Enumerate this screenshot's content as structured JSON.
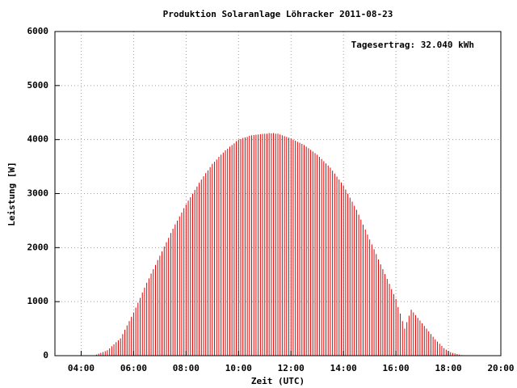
{
  "chart_data": {
    "type": "impulse",
    "title": "Produktion Solaranlage Löhracker 2011-08-23",
    "annotation": "Tagesertrag: 32.040 kWh",
    "x_label": "Zeit (UTC)",
    "y_label": "Leistung [W]",
    "color": "#e00000",
    "grid": true,
    "xlim": [
      180,
      1200
    ],
    "ylim": [
      0,
      6000
    ],
    "xticks": [
      {
        "value": 240,
        "label": "04:00"
      },
      {
        "value": 360,
        "label": "06:00"
      },
      {
        "value": 480,
        "label": "08:00"
      },
      {
        "value": 600,
        "label": "10:00"
      },
      {
        "value": 720,
        "label": "12:00"
      },
      {
        "value": 840,
        "label": "14:00"
      },
      {
        "value": 960,
        "label": "16:00"
      },
      {
        "value": 1080,
        "label": "18:00"
      },
      {
        "value": 1200,
        "label": "20:00"
      }
    ],
    "yticks": [
      0,
      1000,
      2000,
      3000,
      4000,
      5000,
      6000
    ],
    "x": [
      270,
      275,
      280,
      285,
      290,
      295,
      300,
      305,
      310,
      315,
      320,
      325,
      330,
      335,
      340,
      345,
      350,
      355,
      360,
      365,
      370,
      375,
      380,
      385,
      390,
      395,
      400,
      405,
      410,
      415,
      420,
      425,
      430,
      435,
      440,
      445,
      450,
      455,
      460,
      465,
      470,
      475,
      480,
      485,
      490,
      495,
      500,
      505,
      510,
      515,
      520,
      525,
      530,
      535,
      540,
      545,
      550,
      555,
      560,
      565,
      570,
      575,
      580,
      585,
      590,
      595,
      600,
      605,
      610,
      615,
      620,
      625,
      630,
      635,
      640,
      645,
      650,
      655,
      660,
      665,
      670,
      675,
      680,
      685,
      690,
      695,
      700,
      705,
      710,
      715,
      720,
      725,
      730,
      735,
      740,
      745,
      750,
      755,
      760,
      765,
      770,
      775,
      780,
      785,
      790,
      795,
      800,
      805,
      810,
      815,
      820,
      825,
      830,
      835,
      840,
      845,
      850,
      855,
      860,
      865,
      870,
      875,
      880,
      885,
      890,
      895,
      900,
      905,
      910,
      915,
      920,
      925,
      930,
      935,
      940,
      945,
      950,
      955,
      960,
      965,
      970,
      975,
      980,
      985,
      990,
      995,
      1000,
      1005,
      1010,
      1015,
      1020,
      1025,
      1030,
      1035,
      1040,
      1045,
      1050,
      1055,
      1060,
      1065,
      1070,
      1075,
      1080,
      1085,
      1090,
      1095,
      1100,
      1105,
      1110,
      1115,
      1120
    ],
    "values": [
      5,
      21,
      37,
      53,
      68,
      84,
      100,
      135,
      175,
      210,
      250,
      285,
      320,
      400,
      480,
      560,
      640,
      720,
      800,
      890,
      980,
      1070,
      1170,
      1260,
      1350,
      1430,
      1520,
      1600,
      1680,
      1770,
      1850,
      1930,
      2020,
      2100,
      2180,
      2270,
      2350,
      2430,
      2500,
      2580,
      2650,
      2730,
      2800,
      2870,
      2930,
      3000,
      3070,
      3130,
      3200,
      3260,
      3320,
      3380,
      3430,
      3490,
      3550,
      3590,
      3630,
      3680,
      3720,
      3760,
      3800,
      3830,
      3870,
      3900,
      3930,
      3970,
      4000,
      4010,
      4030,
      4040,
      4050,
      4070,
      4080,
      4085,
      4090,
      4095,
      4100,
      4105,
      4110,
      4110,
      4120,
      4115,
      4120,
      4110,
      4110,
      4095,
      4080,
      4065,
      4050,
      4035,
      4020,
      4000,
      3980,
      3960,
      3940,
      3920,
      3900,
      3870,
      3840,
      3810,
      3780,
      3750,
      3720,
      3680,
      3640,
      3600,
      3560,
      3520,
      3480,
      3425,
      3370,
      3315,
      3260,
      3205,
      3150,
      3075,
      3000,
      2925,
      2850,
      2775,
      2700,
      2610,
      2520,
      2425,
      2335,
      2240,
      2150,
      2060,
      1970,
      1880,
      1780,
      1690,
      1600,
      1510,
      1420,
      1330,
      1230,
      1140,
      1050,
      900,
      780,
      640,
      500,
      620,
      740,
      850,
      800,
      750,
      700,
      650,
      600,
      550,
      500,
      450,
      400,
      350,
      300,
      260,
      220,
      180,
      140,
      110,
      80,
      65,
      50,
      40,
      30,
      20,
      10,
      7,
      5
    ]
  }
}
